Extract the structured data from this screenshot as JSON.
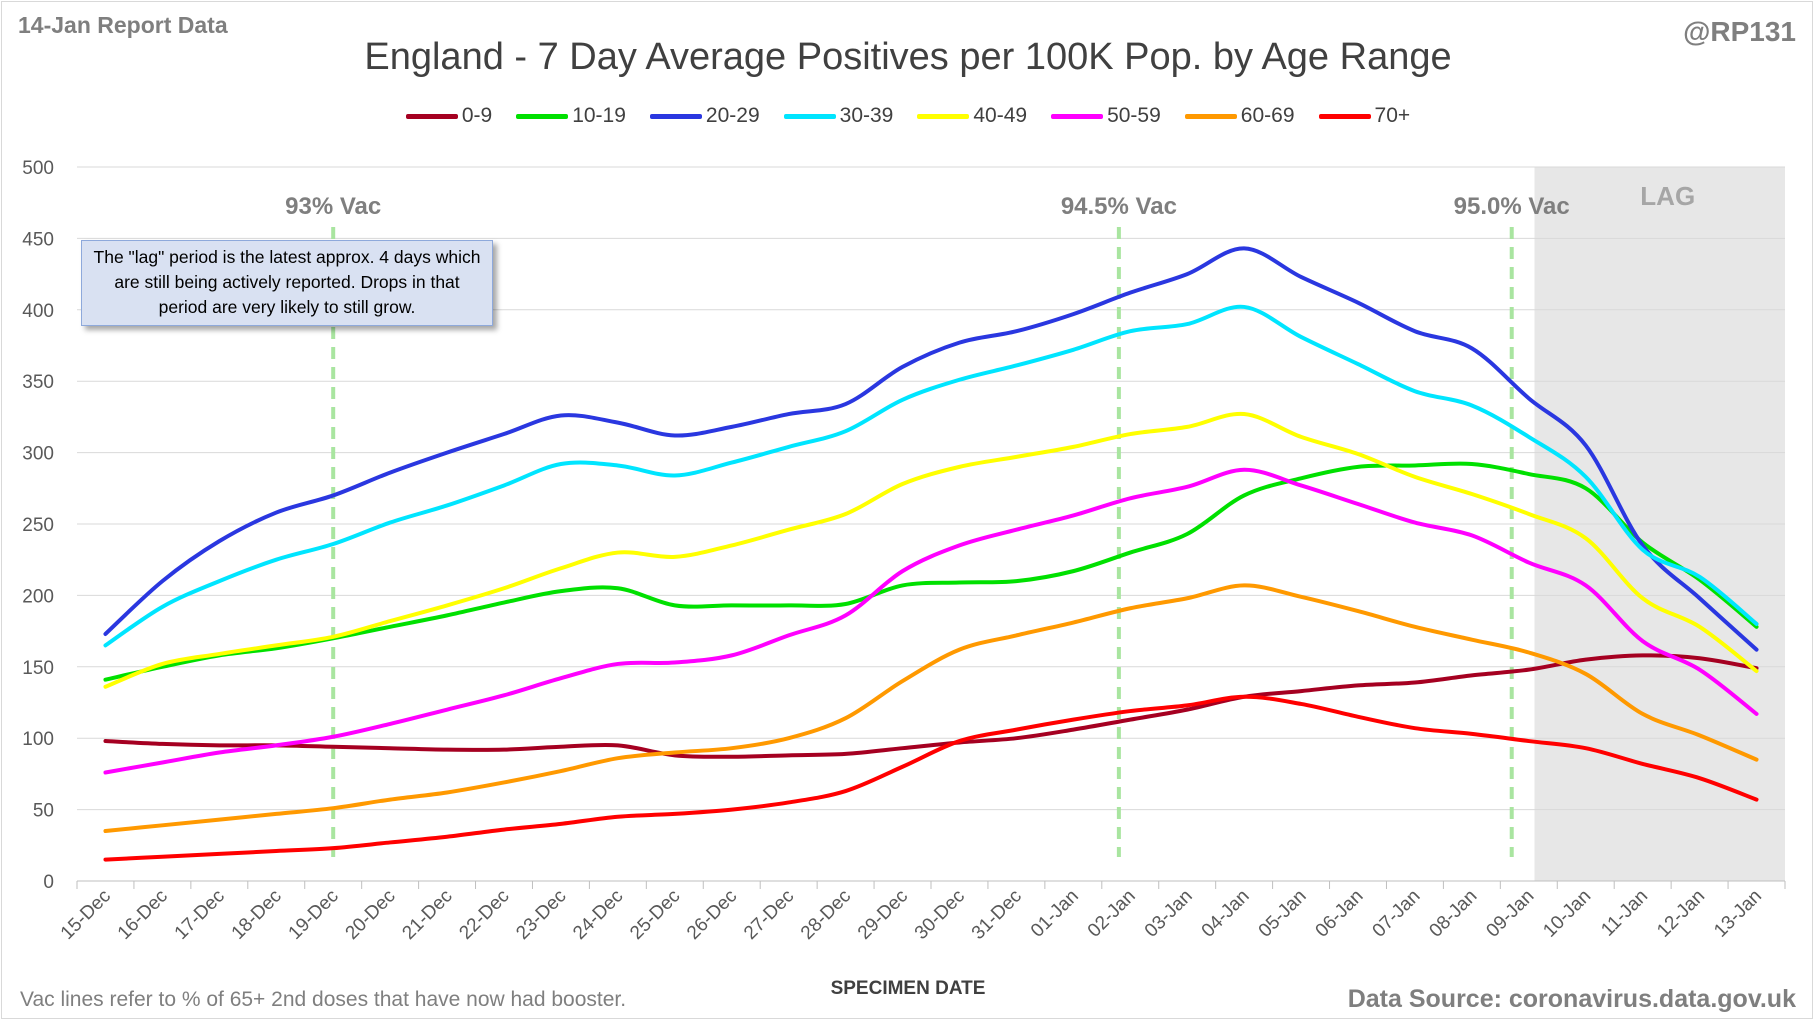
{
  "report_data": "14-Jan Report Data",
  "handle": "@RP131",
  "footnote": "Vac lines refer to % of 65+ 2nd doses that have now had booster.",
  "source": "Data Source: coronavirus.data.gov.uk",
  "note": "The \"lag\" period is the latest approx. 4 days which are still being actively reported.  Drops in that period are very likely to still grow.",
  "chart_data": {
    "type": "line",
    "title": "England - 7 Day Average Positives per 100K Pop. by Age Range",
    "xlabel": "SPECIMEN DATE",
    "ylabel": "",
    "ylim": [
      0,
      500
    ],
    "yticks": [
      0,
      50,
      100,
      150,
      200,
      250,
      300,
      350,
      400,
      450,
      500
    ],
    "grid": true,
    "legend": "top",
    "categories": [
      "15-Dec",
      "16-Dec",
      "17-Dec",
      "18-Dec",
      "19-Dec",
      "20-Dec",
      "21-Dec",
      "22-Dec",
      "23-Dec",
      "24-Dec",
      "25-Dec",
      "26-Dec",
      "27-Dec",
      "28-Dec",
      "29-Dec",
      "30-Dec",
      "31-Dec",
      "01-Jan",
      "02-Jan",
      "03-Jan",
      "04-Jan",
      "05-Jan",
      "06-Jan",
      "07-Jan",
      "08-Jan",
      "09-Jan",
      "10-Jan",
      "11-Jan",
      "12-Jan",
      "13-Jan"
    ],
    "series": [
      {
        "name": "0-9",
        "color": "#a50021",
        "values": [
          98,
          96,
          95,
          95,
          94,
          93,
          92,
          92,
          94,
          95,
          88,
          87,
          88,
          89,
          93,
          97,
          100,
          106,
          113,
          120,
          129,
          133,
          137,
          139,
          144,
          148,
          155,
          158,
          156,
          149
        ]
      },
      {
        "name": "10-19",
        "color": "#00e000",
        "values": [
          141,
          150,
          158,
          163,
          170,
          178,
          186,
          195,
          203,
          205,
          193,
          193,
          193,
          194,
          207,
          209,
          210,
          217,
          230,
          243,
          270,
          282,
          290,
          291,
          292,
          285,
          275,
          237,
          211,
          178
        ]
      },
      {
        "name": "20-29",
        "color": "#2a37e0",
        "values": [
          173,
          210,
          238,
          258,
          270,
          286,
          300,
          313,
          326,
          321,
          312,
          318,
          327,
          334,
          360,
          377,
          385,
          397,
          412,
          425,
          443,
          423,
          405,
          385,
          373,
          338,
          305,
          235,
          198,
          162
        ]
      },
      {
        "name": "30-39",
        "color": "#00e5ff",
        "values": [
          165,
          192,
          210,
          225,
          236,
          251,
          263,
          277,
          292,
          291,
          284,
          293,
          304,
          315,
          337,
          351,
          361,
          372,
          385,
          390,
          402,
          381,
          362,
          343,
          333,
          311,
          283,
          232,
          213,
          180
        ]
      },
      {
        "name": "40-49",
        "color": "#ffff00",
        "values": [
          136,
          152,
          159,
          165,
          171,
          182,
          193,
          205,
          219,
          230,
          227,
          235,
          246,
          257,
          278,
          290,
          297,
          304,
          313,
          318,
          327,
          311,
          299,
          283,
          271,
          257,
          240,
          198,
          178,
          147
        ]
      },
      {
        "name": "50-59",
        "color": "#ff00ff",
        "values": [
          76,
          83,
          90,
          95,
          101,
          110,
          120,
          130,
          142,
          152,
          153,
          158,
          172,
          186,
          217,
          235,
          246,
          256,
          268,
          276,
          288,
          277,
          264,
          251,
          242,
          223,
          207,
          168,
          148,
          117
        ]
      },
      {
        "name": "60-69",
        "color": "#ff9900",
        "values": [
          35,
          39,
          43,
          47,
          51,
          57,
          62,
          69,
          77,
          86,
          90,
          93,
          100,
          114,
          140,
          162,
          172,
          181,
          191,
          198,
          207,
          199,
          189,
          178,
          169,
          160,
          145,
          117,
          102,
          85
        ]
      },
      {
        "name": "70+",
        "color": "#ff0000",
        "values": [
          15,
          17,
          19,
          21,
          23,
          27,
          31,
          36,
          40,
          45,
          47,
          50,
          55,
          63,
          80,
          98,
          106,
          113,
          119,
          123,
          129,
          124,
          115,
          107,
          103,
          98,
          93,
          82,
          72,
          57
        ]
      }
    ],
    "vac_lines": [
      {
        "label": "93% Vac",
        "x": 4.5
      },
      {
        "label": "94.5% Vac",
        "x": 18.3
      },
      {
        "label": "95.0% Vac",
        "x": 25.2
      }
    ],
    "lag": {
      "label": "LAG",
      "start": 25.6
    }
  }
}
